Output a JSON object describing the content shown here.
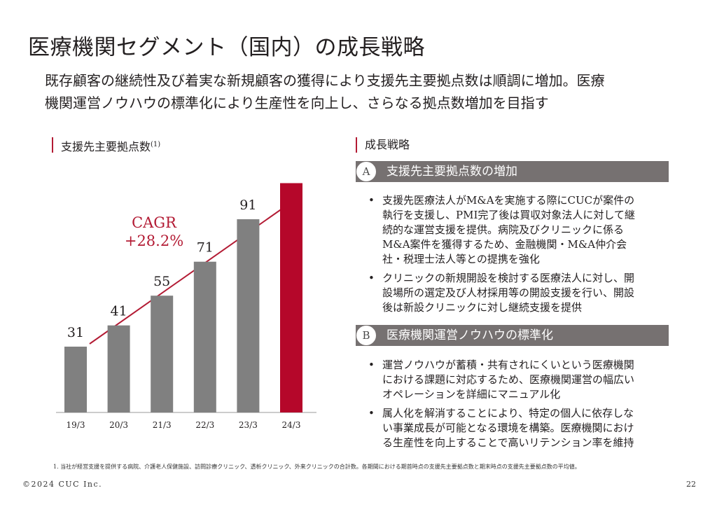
{
  "title": "医療機関セグメント（国内）の成長戦略",
  "lead": [
    "既存顧客の継続性及び着実な新規顧客の獲得により支援先主要拠点数は順調に増加。医療",
    "機関運営ノウハウの標準化により生産性を向上し、さらなる拠点数増加を目指す"
  ],
  "left_section": {
    "label": "支援先主要拠点数",
    "note_mark": "(1)"
  },
  "right_section": {
    "label": "成長戦略"
  },
  "chart_data": {
    "type": "bar",
    "categories": [
      "19/3",
      "20/3",
      "21/3",
      "22/3",
      "23/3",
      "24/3"
    ],
    "values": [
      31,
      41,
      55,
      71,
      91,
      108
    ],
    "highlight_index": 5,
    "colors": {
      "bar": "#808080",
      "highlight": "#b5072a",
      "annotation": "#b31b34"
    },
    "annotation": [
      "CAGR",
      "+28.2%"
    ],
    "ylim": [
      0,
      120
    ],
    "grid": false,
    "show_data_labels": true
  },
  "strategies": [
    {
      "badge": "A",
      "title": "支援先主要拠点数の増加",
      "bullets": [
        [
          "支援先医療法人がM&Aを実施する際にCUCが案件の",
          "執行を支援し、PMI完了後は買収対象法人に対して継",
          "続的な運営支援を提供。病院及びクリニックに係る",
          "M&A案件を獲得するため、金融機関・M&A仲介会",
          "社・税理士法人等との提携を強化"
        ],
        [
          "クリニックの新規開設を検討する医療法人に対し、開",
          "設場所の選定及び人材採用等の開設支援を行い、開設",
          "後は新設クリニックに対し継続支援を提供"
        ]
      ]
    },
    {
      "badge": "B",
      "title": "医療機関運営ノウハウの標準化",
      "bullets": [
        [
          "運営ノウハウが蓄積・共有されにくいという医療機関",
          "における課題に対応するため、医療機関運営の幅広い",
          "オペレーションを詳細にマニュアル化"
        ],
        [
          "属人化を解消することにより、特定の個人に依存しな",
          "い事業成長が可能となる環境を構築。医療機関におけ",
          "る生産性を向上することで高いリテンション率を維持"
        ]
      ]
    }
  ],
  "bullet_symbol": "•",
  "footnote": "1. 当社が経営支援を提供する病院、介護老人保健施設、訪問診療クリニック、透析クリニック、外来クリニックの合計数。各期間における期首時点の支援先主要拠点数と期末時点の支援先主要拠点数の平均値。",
  "copyright": "©2024 CUC Inc.",
  "page_number": "22"
}
